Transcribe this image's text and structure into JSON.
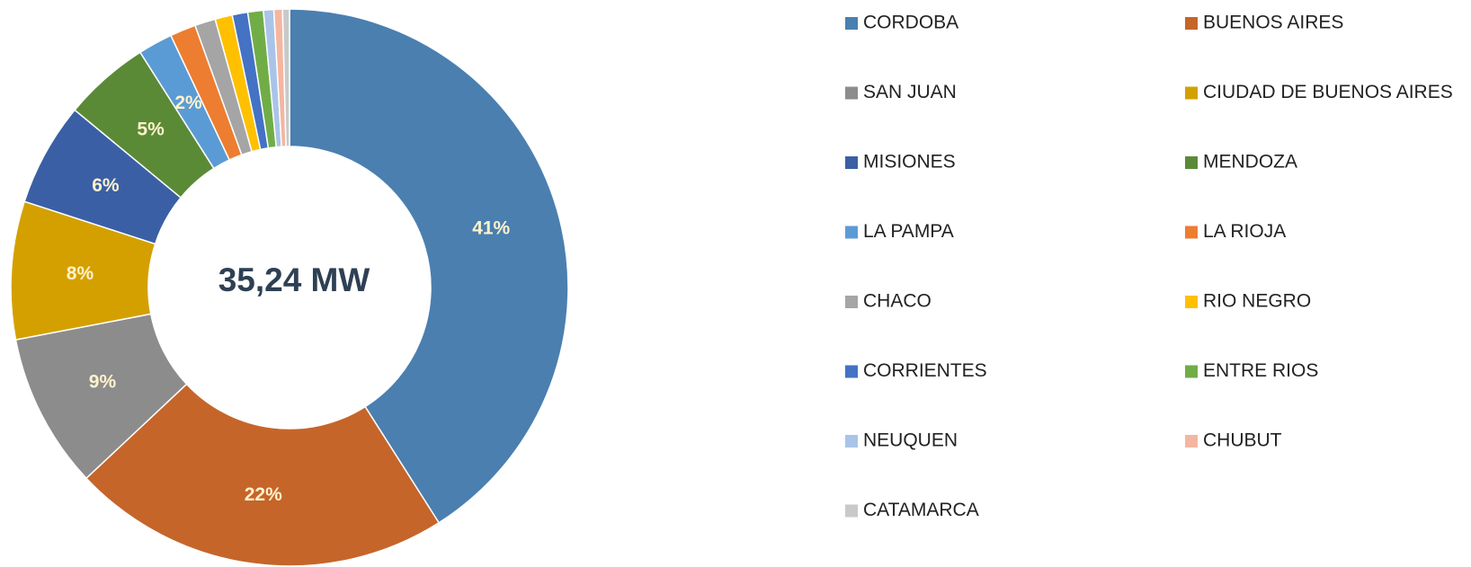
{
  "chart_data": {
    "type": "pie",
    "center_label": "35,24 MW",
    "categories": [
      "CORDOBA",
      "BUENOS AIRES",
      "SAN JUAN",
      "CIUDAD DE BUENOS AIRES",
      "MISIONES",
      "MENDOZA",
      "LA PAMPA",
      "LA RIOJA",
      "CHACO",
      "RIO NEGRO",
      "CORRIENTES",
      "ENTRE RIOS",
      "NEUQUEN",
      "CHUBUT",
      "CATAMARCA"
    ],
    "values": [
      41,
      22,
      9,
      8,
      6,
      5,
      2,
      1.5,
      1.2,
      1.0,
      0.9,
      0.9,
      0.6,
      0.5,
      0.4
    ],
    "value_labels": [
      "41%",
      "22%",
      "9%",
      "8%",
      "6%",
      "5%",
      "2%",
      null,
      null,
      null,
      null,
      null,
      null,
      null,
      null
    ],
    "colors": [
      "#4a7fb0",
      "#c5652a",
      "#8c8c8c",
      "#d4a000",
      "#3a5fa5",
      "#5b8a37",
      "#5b9bd5",
      "#ed7d31",
      "#a5a5a5",
      "#ffc000",
      "#4472c4",
      "#70ad47",
      "#a9c4e8",
      "#f4b6a0",
      "#c9c9c9"
    ]
  }
}
